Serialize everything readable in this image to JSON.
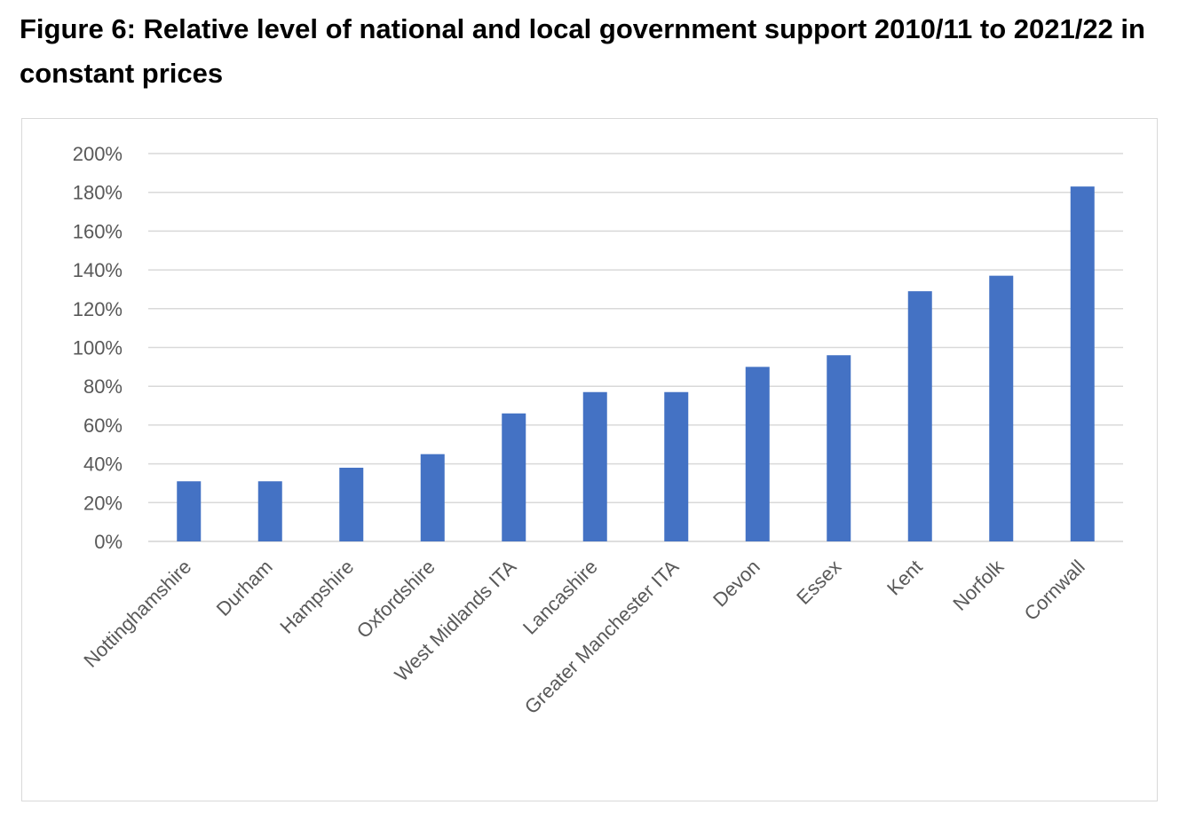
{
  "figure": {
    "title": "Figure 6: Relative level of national and local government support 2010/11 to 2021/22 in constant prices"
  },
  "chart_data": {
    "type": "bar",
    "title": "",
    "xlabel": "",
    "ylabel": "",
    "categories": [
      "Nottinghamshire",
      "Durham",
      "Hampshire",
      "Oxfordshire",
      "West Midlands ITA",
      "Lancashire",
      "Greater Manchester ITA",
      "Devon",
      "Essex",
      "Kent",
      "Norfolk",
      "Cornwall"
    ],
    "values": [
      31,
      31,
      38,
      45,
      66,
      77,
      77,
      90,
      96,
      129,
      137,
      183
    ],
    "value_unit": "%",
    "ylim": [
      0,
      200
    ],
    "yticks": [
      0,
      20,
      40,
      60,
      80,
      100,
      120,
      140,
      160,
      180,
      200
    ],
    "ytick_labels": [
      "0%",
      "20%",
      "40%",
      "60%",
      "80%",
      "100%",
      "120%",
      "140%",
      "160%",
      "180%",
      "200%"
    ],
    "grid": true,
    "legend": "none",
    "colors": {
      "bar": "#4472c4",
      "grid": "#d9d9d9",
      "text": "#595959"
    }
  }
}
